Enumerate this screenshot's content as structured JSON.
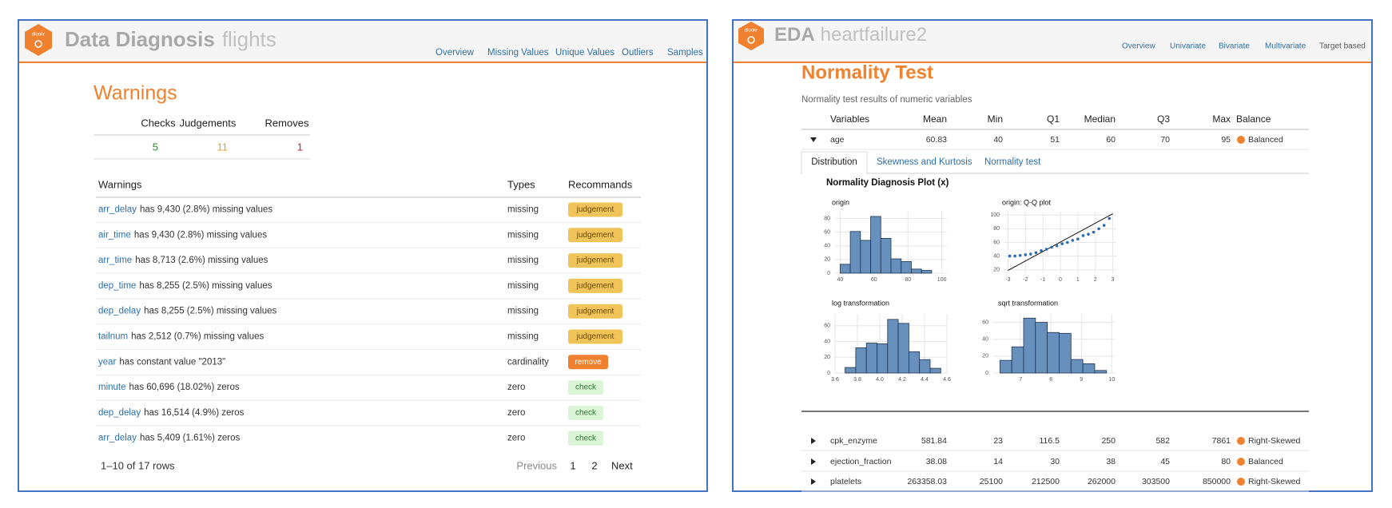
{
  "left": {
    "header": {
      "logo": "dlookr",
      "title": "Data Diagnosis",
      "subtitle": "flights",
      "nav": [
        "Overview",
        "Missing Values",
        "Unique Values",
        "Outliers",
        "Samples"
      ]
    },
    "warnings": {
      "title": "Warnings",
      "summary_headers": [
        "Checks",
        "Judgements",
        "Removes"
      ],
      "summary_values": [
        5,
        11,
        1
      ],
      "summary_colors": [
        "#2e7d32",
        "#f0a030",
        "#c62828"
      ],
      "columns": [
        "Warnings",
        "Types",
        "Recommands"
      ],
      "rows": [
        {
          "variable": "arr_delay",
          "text": "has 9,430 (2.8%) missing values",
          "type": "missing",
          "action": "judgement",
          "action_color": "#f1c45a",
          "action_text_color": "#6b4a00"
        },
        {
          "variable": "air_time",
          "text": "has 9,430 (2.8%) missing values",
          "type": "missing",
          "action": "judgement",
          "action_color": "#f1c45a",
          "action_text_color": "#6b4a00"
        },
        {
          "variable": "arr_time",
          "text": "has 8,713 (2.6%) missing values",
          "type": "missing",
          "action": "judgement",
          "action_color": "#f1c45a",
          "action_text_color": "#6b4a00"
        },
        {
          "variable": "dep_time",
          "text": "has 8,255 (2.5%) missing values",
          "type": "missing",
          "action": "judgement",
          "action_color": "#f1c45a",
          "action_text_color": "#6b4a00"
        },
        {
          "variable": "dep_delay",
          "text": "has 8,255 (2.5%) missing values",
          "type": "missing",
          "action": "judgement",
          "action_color": "#f1c45a",
          "action_text_color": "#6b4a00"
        },
        {
          "variable": "tailnum",
          "text": "has 2,512 (0.7%) missing values",
          "type": "missing",
          "action": "judgement",
          "action_color": "#f1c45a",
          "action_text_color": "#6b4a00"
        },
        {
          "variable": "year",
          "text": "has constant value \"2013\"",
          "type": "cardinality",
          "action": "remove",
          "action_color": "#f0812e",
          "action_text_color": "#ffffff"
        },
        {
          "variable": "minute",
          "text": "has 60,696 (18.02%) zeros",
          "type": "zero",
          "action": "check",
          "action_color": "#d9f5d6",
          "action_text_color": "#2f7a2f"
        },
        {
          "variable": "dep_delay",
          "text": "has 16,514 (4.9%) zeros",
          "type": "zero",
          "action": "check",
          "action_color": "#d9f5d6",
          "action_text_color": "#2f7a2f"
        },
        {
          "variable": "arr_delay",
          "text": "has 5,409 (1.61%) zeros",
          "type": "zero",
          "action": "check",
          "action_color": "#d9f5d6",
          "action_text_color": "#2f7a2f"
        }
      ],
      "pagination": {
        "info": "1–10 of 17 rows",
        "previous": "Previous",
        "pages": [
          1,
          2
        ],
        "next": "Next"
      }
    }
  },
  "right": {
    "header": {
      "logo": "dlookr",
      "title": "EDA",
      "subtitle": "heartfailure2",
      "nav": [
        "Overview",
        "Univariate",
        "Bivariate",
        "Multivariate",
        "Target based"
      ]
    },
    "section_title": "Normality Test",
    "description": "Normality test results of numeric variables",
    "columns": [
      "Variables",
      "Mean",
      "Min",
      "Q1",
      "Median",
      "Q3",
      "Max",
      "Balance"
    ],
    "rows": [
      {
        "variable": "age",
        "values": [
          60.83,
          40,
          51,
          60,
          70,
          95
        ],
        "balance": "Balanced",
        "expanded": true
      },
      {
        "variable": "cpk_enzyme",
        "values": [
          581.84,
          23,
          116.5,
          250,
          582,
          7861
        ],
        "balance": "Right-Skewed",
        "expanded": false
      },
      {
        "variable": "ejection_fraction",
        "values": [
          38.08,
          14,
          30,
          38,
          45,
          80
        ],
        "balance": "Balanced",
        "expanded": false
      },
      {
        "variable": "platelets",
        "values": [
          263358.03,
          25100,
          212500,
          262000,
          303500,
          850000
        ],
        "balance": "Right-Skewed",
        "expanded": false
      }
    ],
    "tabs": [
      "Distribution",
      "Skewness and Kurtosis",
      "Normality test"
    ],
    "plot": {
      "title": "Normality Diagnosis Plot (x)",
      "panels": [
        {
          "type": "hist",
          "title": "origin",
          "bins": [
            40,
            46,
            52,
            58,
            64,
            70,
            76,
            82,
            88,
            94
          ],
          "counts": [
            13,
            61,
            48,
            83,
            51,
            21,
            17,
            6,
            4
          ],
          "xlim": [
            37,
            103
          ],
          "xticks": [
            40,
            60,
            80,
            100
          ],
          "ylim": [
            0,
            90
          ],
          "yticks": [
            0,
            20,
            40,
            60,
            80
          ]
        },
        {
          "type": "qq",
          "title": "origin: Q-Q plot",
          "points_x": [
            -2.9,
            -2.6,
            -2.3,
            -2.0,
            -1.7,
            -1.4,
            -1.1,
            -0.8,
            -0.5,
            -0.2,
            0.1,
            0.4,
            0.7,
            1.0,
            1.3,
            1.6,
            1.9,
            2.2,
            2.5,
            2.8
          ],
          "points_y": [
            40,
            40,
            41,
            42,
            43,
            45,
            48,
            50,
            53,
            55,
            58,
            60,
            63,
            65,
            70,
            72,
            75,
            80,
            85,
            95
          ],
          "line_x": [
            -3,
            3
          ],
          "line_y": [
            19,
            102
          ],
          "xlim": [
            -3.2,
            3.2
          ],
          "xticks": [
            -3,
            -2,
            -1,
            0,
            1,
            2,
            3
          ],
          "ylim": [
            15,
            105
          ],
          "yticks": [
            20,
            40,
            60,
            80,
            100
          ]
        },
        {
          "type": "hist",
          "title": "log transformation",
          "bins": [
            3.69,
            3.785,
            3.88,
            3.975,
            4.07,
            4.165,
            4.26,
            4.355,
            4.45,
            4.545
          ],
          "counts": [
            7,
            32,
            38,
            37,
            68,
            63,
            27,
            17,
            6
          ],
          "xlim": [
            3.6,
            4.6
          ],
          "xticks": [
            3.6,
            3.8,
            {
              "value": 4,
              "label": "4.0"
            },
            4.2,
            4.4,
            4.6
          ],
          "ylim": [
            0,
            75
          ],
          "yticks": [
            0,
            20,
            40,
            60
          ]
        },
        {
          "type": "hist",
          "title": "sqrt transformation",
          "bins": [
            6.32,
            6.71,
            7.1,
            7.49,
            7.88,
            8.27,
            8.66,
            9.05,
            9.44,
            9.83
          ],
          "counts": [
            15,
            31,
            65,
            60,
            48,
            47,
            16,
            11,
            3
          ],
          "xlim": [
            6.1,
            10.1
          ],
          "xticks": [
            7,
            8,
            9,
            10
          ],
          "ylim": [
            0,
            70
          ],
          "yticks": [
            0,
            20,
            40,
            60
          ]
        }
      ]
    }
  }
}
